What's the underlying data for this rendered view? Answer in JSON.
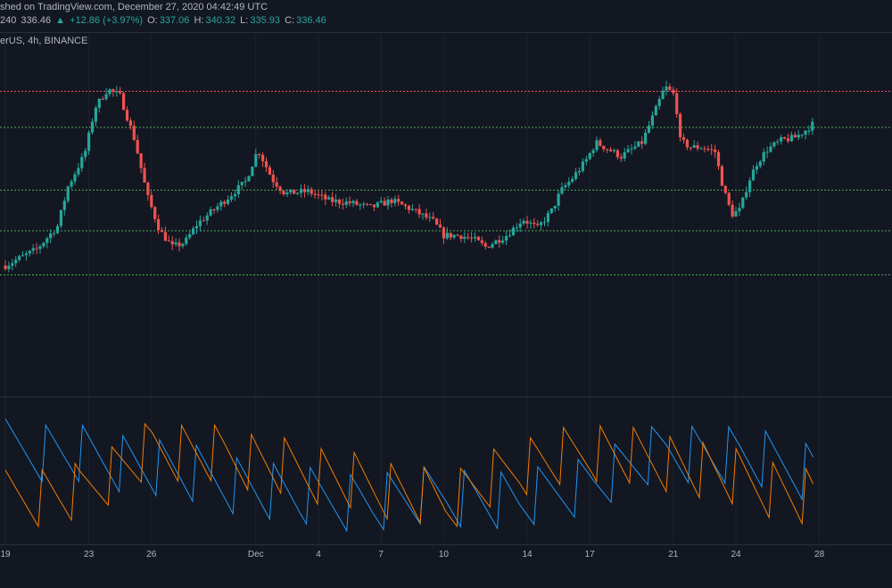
{
  "header": {
    "published": "shed on TradingView.com, December 27, 2020 04:42:49 UTC",
    "ticker_fragment": "240",
    "last_price": "336.46",
    "change": "+12.86 (+3.97%)",
    "open_label": "O:",
    "open_value": "337.06",
    "high_label": "H:",
    "high_value": "340.32",
    "low_label": "L:",
    "low_value": "335.93",
    "close_label": "C:",
    "close_value": "336.46",
    "symbol": "erUS, 4h, BINANCE"
  },
  "colors": {
    "background": "#131722",
    "bull": "#26a69a",
    "bear": "#ef5350",
    "resistance_line": "#ef5350",
    "support_line": "#4caf50",
    "aroon_up": "#2196f3",
    "aroon_down": "#f57c00",
    "grid": "#1e222d"
  },
  "chart_data": [
    {
      "type": "candlestick",
      "interval": "4h",
      "exchange": "BINANCE",
      "axis_labels": [
        {
          "label": "19",
          "day": 0
        },
        {
          "label": "23",
          "day": 4
        },
        {
          "label": "26",
          "day": 7
        },
        {
          "label": "Dec",
          "day": 12
        },
        {
          "label": "4",
          "day": 15
        },
        {
          "label": "7",
          "day": 18
        },
        {
          "label": "10",
          "day": 21
        },
        {
          "label": "14",
          "day": 25
        },
        {
          "label": "17",
          "day": 28
        },
        {
          "label": "21",
          "day": 32
        },
        {
          "label": "24",
          "day": 35
        },
        {
          "label": "28",
          "day": 39
        }
      ],
      "price_range": [
        230,
        360
      ],
      "horizontal_levels": [
        {
          "value": 341.0,
          "color": "red"
        },
        {
          "value": 325.5,
          "color": "green"
        },
        {
          "value": 298.5,
          "color": "green"
        },
        {
          "value": 281.0,
          "color": "green"
        },
        {
          "value": 262.0,
          "color": "green"
        }
      ],
      "anchors": [
        [
          0,
          266
        ],
        [
          1.5,
          273
        ],
        [
          2.5,
          283
        ],
        [
          3,
          300
        ],
        [
          3.8,
          314
        ],
        [
          4.3,
          334
        ],
        [
          4.9,
          342
        ],
        [
          5.5,
          339
        ],
        [
          6.2,
          320
        ],
        [
          6.8,
          296
        ],
        [
          7.4,
          281
        ],
        [
          8,
          274
        ],
        [
          8.6,
          276
        ],
        [
          9.2,
          284
        ],
        [
          10.5,
          294
        ],
        [
          11.5,
          302
        ],
        [
          12.1,
          316
        ],
        [
          12.8,
          303
        ],
        [
          13.4,
          297
        ],
        [
          14.5,
          298
        ],
        [
          15.5,
          294
        ],
        [
          16.5,
          293
        ],
        [
          17.5,
          291
        ],
        [
          18.5,
          294
        ],
        [
          19.5,
          290
        ],
        [
          20.5,
          285
        ],
        [
          21,
          279
        ],
        [
          21.8,
          279
        ],
        [
          22.5,
          277
        ],
        [
          23,
          274
        ],
        [
          24,
          279
        ],
        [
          24.8,
          286
        ],
        [
          25.5,
          282
        ],
        [
          26.2,
          290
        ],
        [
          26.6,
          298
        ],
        [
          27.2,
          304
        ],
        [
          27.8,
          311
        ],
        [
          28.3,
          319
        ],
        [
          28.9,
          316
        ],
        [
          29.5,
          313
        ],
        [
          30.5,
          319
        ],
        [
          31.2,
          334
        ],
        [
          31.6,
          343
        ],
        [
          32.1,
          339
        ],
        [
          32.3,
          320
        ],
        [
          32.8,
          317
        ],
        [
          33.4,
          317
        ],
        [
          34,
          315
        ],
        [
          34.4,
          299
        ],
        [
          34.8,
          288
        ],
        [
          35.2,
          290
        ],
        [
          35.6,
          302
        ],
        [
          36,
          310
        ],
        [
          36.5,
          316
        ],
        [
          37.2,
          320
        ],
        [
          37.8,
          321
        ],
        [
          38.3,
          324
        ],
        [
          38.7,
          327
        ]
      ]
    },
    {
      "type": "line",
      "indicator": "Aroon",
      "range": [
        0,
        100
      ],
      "series": [
        {
          "color": "blue",
          "period_samples": [
            100,
            92,
            70,
            40,
            10,
            0,
            14,
            0,
            40,
            100,
            90,
            60
          ]
        },
        {
          "color": "orange",
          "period_samples": [
            0,
            14,
            100,
            88,
            60,
            30,
            0,
            70,
            100,
            80,
            40,
            0
          ]
        }
      ]
    }
  ]
}
